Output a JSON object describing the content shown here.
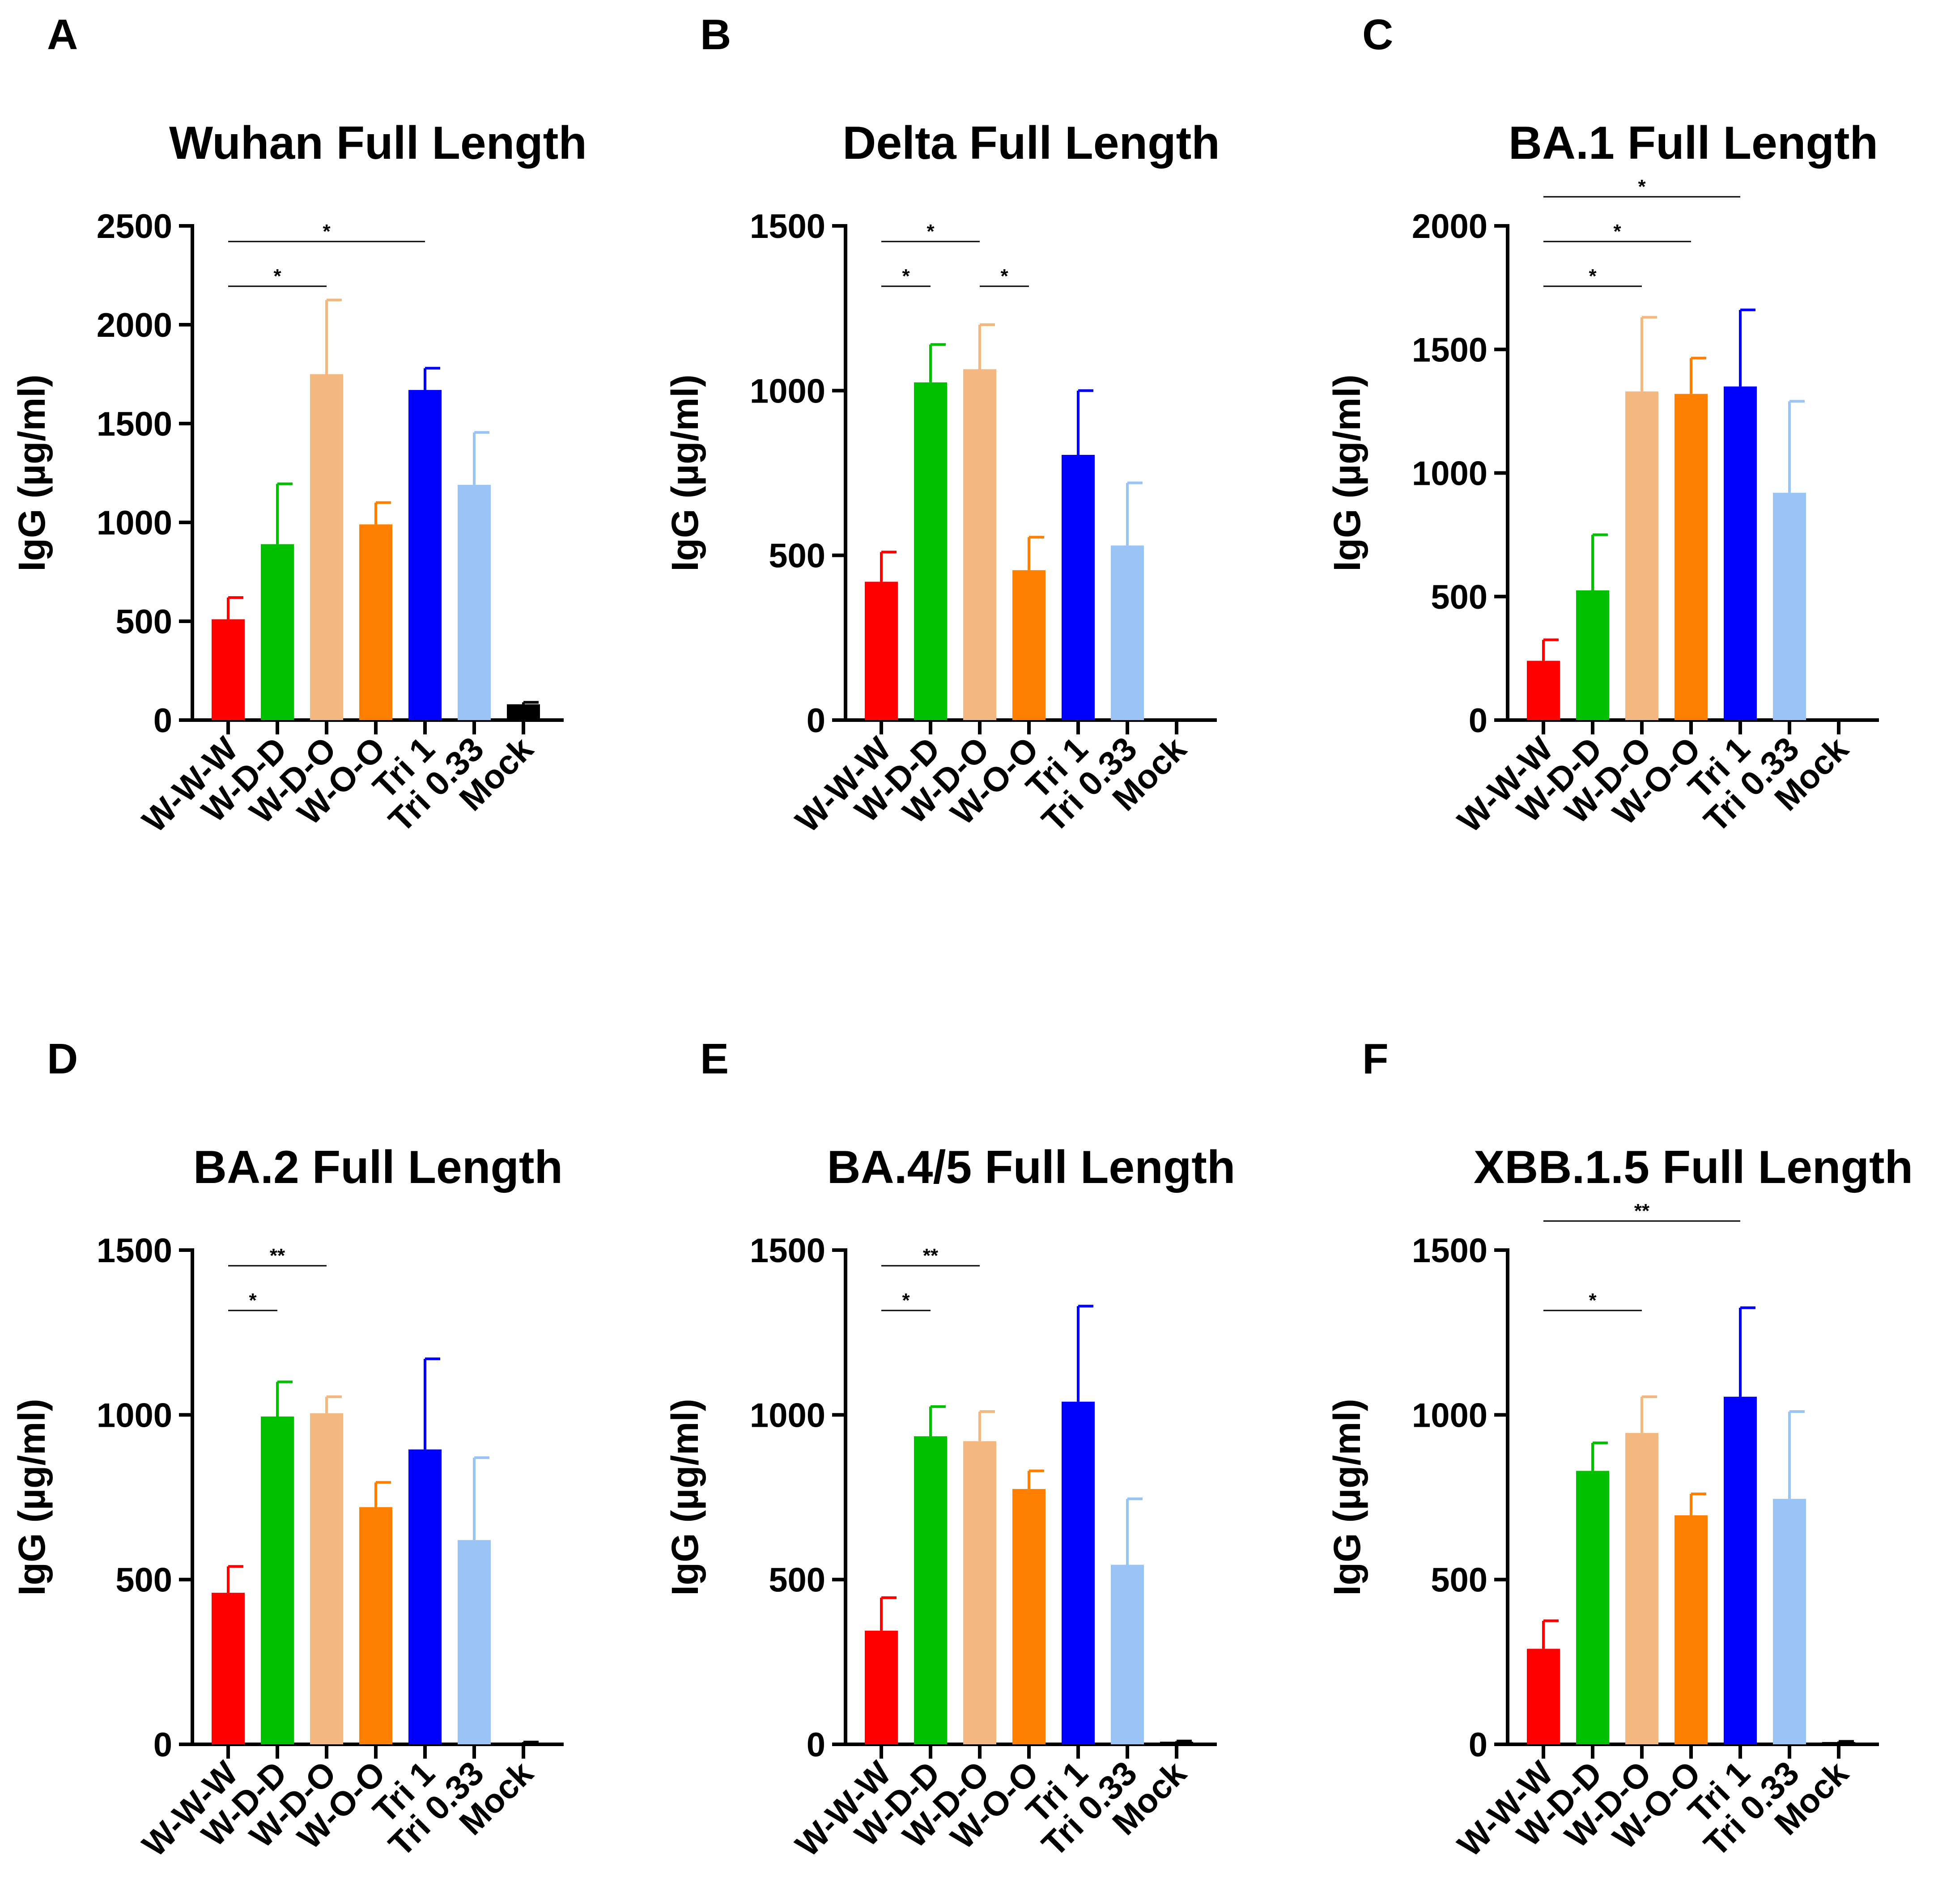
{
  "colors": [
    "#ff0000",
    "#00c000",
    "#f2b880",
    "#ff8000",
    "#0000ff",
    "#99c4f5",
    "#000000"
  ],
  "chart_data": [
    {
      "panel": "A",
      "type": "bar",
      "title": "Wuhan Full Length",
      "ylabel": "IgG (µg/ml)",
      "categories": [
        "W-W-W",
        "W-D-D",
        "W-D-O",
        "W-O-O",
        "Tri 1",
        "Tri 0.33",
        "Mock"
      ],
      "values": [
        510,
        890,
        1750,
        990,
        1670,
        1190,
        80
      ],
      "errors": [
        110,
        305,
        375,
        110,
        110,
        265,
        10
      ],
      "ylim": [
        0,
        2500
      ],
      "yticks": [
        0,
        500,
        1000,
        1500,
        2000,
        2500
      ],
      "significance": [
        {
          "from": 0,
          "to": 2,
          "label": "*",
          "level": 1
        },
        {
          "from": 0,
          "to": 4,
          "label": "*",
          "level": 2
        }
      ]
    },
    {
      "panel": "B",
      "type": "bar",
      "title": "Delta Full Length",
      "ylabel": "IgG (µg/ml)",
      "categories": [
        "W-W-W",
        "W-D-D",
        "W-D-O",
        "W-O-O",
        "Tri 1",
        "Tri 0.33",
        "Mock"
      ],
      "values": [
        420,
        1025,
        1065,
        455,
        805,
        530,
        0
      ],
      "errors": [
        90,
        115,
        135,
        100,
        195,
        190,
        0
      ],
      "ylim": [
        0,
        1500
      ],
      "yticks": [
        0,
        500,
        1000,
        1500
      ],
      "significance": [
        {
          "from": 0,
          "to": 1,
          "label": "*",
          "level": 1
        },
        {
          "from": 0,
          "to": 2,
          "label": "*",
          "level": 2
        },
        {
          "from": 2,
          "to": 3,
          "label": "*",
          "level": 1
        }
      ]
    },
    {
      "panel": "C",
      "type": "bar",
      "title": "BA.1 Full Length",
      "ylabel": "IgG (µg/ml)",
      "categories": [
        "W-W-W",
        "W-D-D",
        "W-D-O",
        "W-O-O",
        "Tri 1",
        "Tri 0.33",
        "Mock"
      ],
      "values": [
        240,
        525,
        1330,
        1320,
        1350,
        920,
        0
      ],
      "errors": [
        85,
        225,
        300,
        145,
        310,
        370,
        0
      ],
      "ylim": [
        0,
        2000
      ],
      "yticks": [
        0,
        500,
        1000,
        1500,
        2000
      ],
      "significance": [
        {
          "from": 0,
          "to": 2,
          "label": "*",
          "level": 1
        },
        {
          "from": 0,
          "to": 3,
          "label": "*",
          "level": 2
        },
        {
          "from": 0,
          "to": 4,
          "label": "*",
          "level": 3
        }
      ]
    },
    {
      "panel": "D",
      "type": "bar",
      "title": "BA.2 Full Length",
      "ylabel": "IgG (µg/ml)",
      "categories": [
        "W-W-W",
        "W-D-D",
        "W-D-O",
        "W-O-O",
        "Tri 1",
        "Tri 0.33",
        "Mock"
      ],
      "values": [
        460,
        995,
        1005,
        720,
        895,
        620,
        5
      ],
      "errors": [
        80,
        105,
        50,
        75,
        275,
        250,
        2
      ],
      "ylim": [
        0,
        1500
      ],
      "yticks": [
        0,
        500,
        1000,
        1500
      ],
      "significance": [
        {
          "from": 0,
          "to": 1,
          "label": "*",
          "level": 1
        },
        {
          "from": 0,
          "to": 2,
          "label": "**",
          "level": 2
        }
      ]
    },
    {
      "panel": "E",
      "type": "bar",
      "title": "BA.4/5 Full Length",
      "ylabel": "IgG (µg/ml)",
      "categories": [
        "W-W-W",
        "W-D-D",
        "W-D-O",
        "W-O-O",
        "Tri 1",
        "Tri 0.33",
        "Mock"
      ],
      "values": [
        345,
        935,
        920,
        775,
        1040,
        545,
        8
      ],
      "errors": [
        100,
        90,
        90,
        55,
        290,
        200,
        2
      ],
      "ylim": [
        0,
        1500
      ],
      "yticks": [
        0,
        500,
        1000,
        1500
      ],
      "significance": [
        {
          "from": 0,
          "to": 1,
          "label": "*",
          "level": 1
        },
        {
          "from": 0,
          "to": 2,
          "label": "**",
          "level": 2
        }
      ]
    },
    {
      "panel": "F",
      "type": "bar",
      "title": "XBB.1.5 Full Length",
      "ylabel": "IgG (µg/ml)",
      "categories": [
        "W-W-W",
        "W-D-D",
        "W-D-O",
        "W-O-O",
        "Tri 1",
        "Tri 0.33",
        "Mock"
      ],
      "values": [
        290,
        830,
        945,
        695,
        1055,
        745,
        7
      ],
      "errors": [
        85,
        85,
        110,
        65,
        270,
        265,
        2
      ],
      "ylim": [
        0,
        1500
      ],
      "yticks": [
        0,
        500,
        1000,
        1500
      ],
      "significance": [
        {
          "from": 0,
          "to": 2,
          "label": "*",
          "level": 1
        },
        {
          "from": 0,
          "to": 4,
          "label": "**",
          "level": 3
        }
      ]
    }
  ]
}
